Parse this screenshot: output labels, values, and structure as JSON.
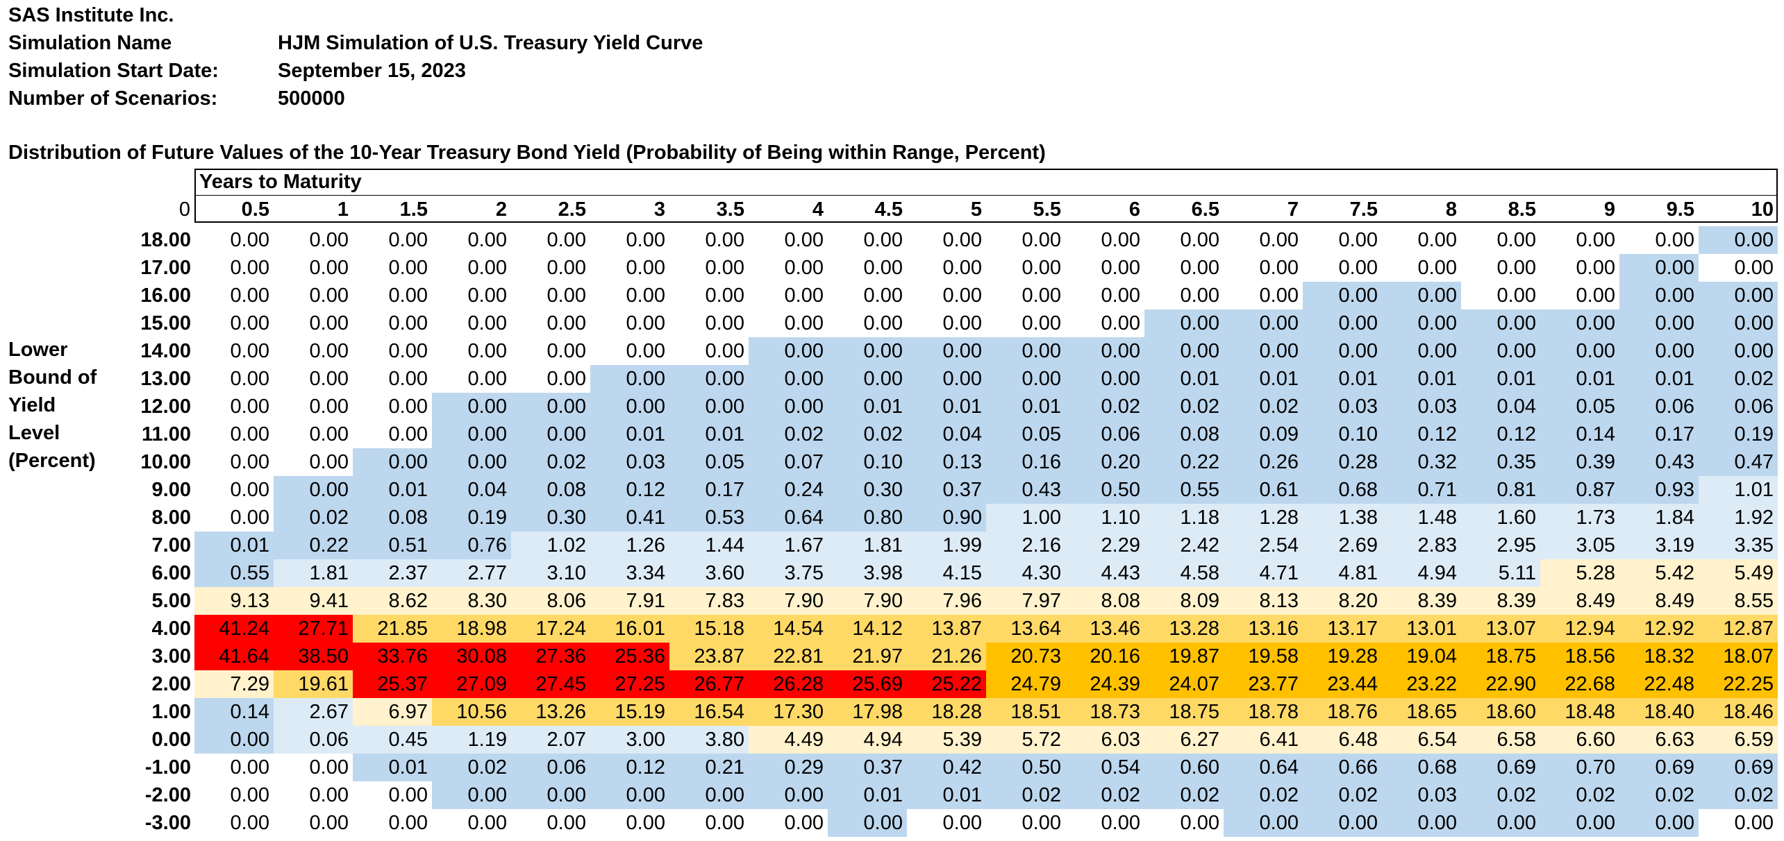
{
  "header": {
    "company": "SAS Institute Inc.",
    "fields": [
      {
        "label": "Simulation Name",
        "value": "HJM Simulation of U.S. Treasury Yield Curve"
      },
      {
        "label": "Simulation Start Date:",
        "value": "September 15, 2023"
      },
      {
        "label": "Number of Scenarios:",
        "value": "500000"
      }
    ]
  },
  "table": {
    "caption": "Distribution of Future Values of the 10-Year Treasury Bond Yield (Probability of Being within Range, Percent)",
    "column_group_title": "Years to Maturity",
    "corner_label": "0",
    "row_axis_label": [
      "Lower",
      "Bound of",
      "Yield",
      "Level",
      "(Percent)"
    ],
    "columns": [
      "0.5",
      "1",
      "1.5",
      "2",
      "2.5",
      "3",
      "3.5",
      "4",
      "4.5",
      "5",
      "5.5",
      "6",
      "6.5",
      "7",
      "7.5",
      "8",
      "8.5",
      "9",
      "9.5",
      "10"
    ],
    "rows": [
      {
        "label": "18.00",
        "values": [
          "0.00",
          "0.00",
          "0.00",
          "0.00",
          "0.00",
          "0.00",
          "0.00",
          "0.00",
          "0.00",
          "0.00",
          "0.00",
          "0.00",
          "0.00",
          "0.00",
          "0.00",
          "0.00",
          "0.00",
          "0.00",
          "0.00",
          "0.00"
        ]
      },
      {
        "label": "17.00",
        "values": [
          "0.00",
          "0.00",
          "0.00",
          "0.00",
          "0.00",
          "0.00",
          "0.00",
          "0.00",
          "0.00",
          "0.00",
          "0.00",
          "0.00",
          "0.00",
          "0.00",
          "0.00",
          "0.00",
          "0.00",
          "0.00",
          "0.00",
          "0.00"
        ]
      },
      {
        "label": "16.00",
        "values": [
          "0.00",
          "0.00",
          "0.00",
          "0.00",
          "0.00",
          "0.00",
          "0.00",
          "0.00",
          "0.00",
          "0.00",
          "0.00",
          "0.00",
          "0.00",
          "0.00",
          "0.00",
          "0.00",
          "0.00",
          "0.00",
          "0.00",
          "0.00"
        ]
      },
      {
        "label": "15.00",
        "values": [
          "0.00",
          "0.00",
          "0.00",
          "0.00",
          "0.00",
          "0.00",
          "0.00",
          "0.00",
          "0.00",
          "0.00",
          "0.00",
          "0.00",
          "0.00",
          "0.00",
          "0.00",
          "0.00",
          "0.00",
          "0.00",
          "0.00",
          "0.00"
        ]
      },
      {
        "label": "14.00",
        "values": [
          "0.00",
          "0.00",
          "0.00",
          "0.00",
          "0.00",
          "0.00",
          "0.00",
          "0.00",
          "0.00",
          "0.00",
          "0.00",
          "0.00",
          "0.00",
          "0.00",
          "0.00",
          "0.00",
          "0.00",
          "0.00",
          "0.00",
          "0.00"
        ]
      },
      {
        "label": "13.00",
        "values": [
          "0.00",
          "0.00",
          "0.00",
          "0.00",
          "0.00",
          "0.00",
          "0.00",
          "0.00",
          "0.00",
          "0.00",
          "0.00",
          "0.00",
          "0.01",
          "0.01",
          "0.01",
          "0.01",
          "0.01",
          "0.01",
          "0.01",
          "0.02"
        ]
      },
      {
        "label": "12.00",
        "values": [
          "0.00",
          "0.00",
          "0.00",
          "0.00",
          "0.00",
          "0.00",
          "0.00",
          "0.00",
          "0.01",
          "0.01",
          "0.01",
          "0.02",
          "0.02",
          "0.02",
          "0.03",
          "0.03",
          "0.04",
          "0.05",
          "0.06",
          "0.06"
        ]
      },
      {
        "label": "11.00",
        "values": [
          "0.00",
          "0.00",
          "0.00",
          "0.00",
          "0.00",
          "0.01",
          "0.01",
          "0.02",
          "0.02",
          "0.04",
          "0.05",
          "0.06",
          "0.08",
          "0.09",
          "0.10",
          "0.12",
          "0.12",
          "0.14",
          "0.17",
          "0.19"
        ]
      },
      {
        "label": "10.00",
        "values": [
          "0.00",
          "0.00",
          "0.00",
          "0.00",
          "0.02",
          "0.03",
          "0.05",
          "0.07",
          "0.10",
          "0.13",
          "0.16",
          "0.20",
          "0.22",
          "0.26",
          "0.28",
          "0.32",
          "0.35",
          "0.39",
          "0.43",
          "0.47"
        ]
      },
      {
        "label": "9.00",
        "values": [
          "0.00",
          "0.00",
          "0.01",
          "0.04",
          "0.08",
          "0.12",
          "0.17",
          "0.24",
          "0.30",
          "0.37",
          "0.43",
          "0.50",
          "0.55",
          "0.61",
          "0.68",
          "0.71",
          "0.81",
          "0.87",
          "0.93",
          "1.01"
        ]
      },
      {
        "label": "8.00",
        "values": [
          "0.00",
          "0.02",
          "0.08",
          "0.19",
          "0.30",
          "0.41",
          "0.53",
          "0.64",
          "0.80",
          "0.90",
          "1.00",
          "1.10",
          "1.18",
          "1.28",
          "1.38",
          "1.48",
          "1.60",
          "1.73",
          "1.84",
          "1.92"
        ]
      },
      {
        "label": "7.00",
        "values": [
          "0.01",
          "0.22",
          "0.51",
          "0.76",
          "1.02",
          "1.26",
          "1.44",
          "1.67",
          "1.81",
          "1.99",
          "2.16",
          "2.29",
          "2.42",
          "2.54",
          "2.69",
          "2.83",
          "2.95",
          "3.05",
          "3.19",
          "3.35"
        ]
      },
      {
        "label": "6.00",
        "values": [
          "0.55",
          "1.81",
          "2.37",
          "2.77",
          "3.10",
          "3.34",
          "3.60",
          "3.75",
          "3.98",
          "4.15",
          "4.30",
          "4.43",
          "4.58",
          "4.71",
          "4.81",
          "4.94",
          "5.11",
          "5.28",
          "5.42",
          "5.49"
        ]
      },
      {
        "label": "5.00",
        "values": [
          "9.13",
          "9.41",
          "8.62",
          "8.30",
          "8.06",
          "7.91",
          "7.83",
          "7.90",
          "7.90",
          "7.96",
          "7.97",
          "8.08",
          "8.09",
          "8.13",
          "8.20",
          "8.39",
          "8.39",
          "8.49",
          "8.49",
          "8.55"
        ]
      },
      {
        "label": "4.00",
        "values": [
          "41.24",
          "27.71",
          "21.85",
          "18.98",
          "17.24",
          "16.01",
          "15.18",
          "14.54",
          "14.12",
          "13.87",
          "13.64",
          "13.46",
          "13.28",
          "13.16",
          "13.17",
          "13.01",
          "13.07",
          "12.94",
          "12.92",
          "12.87"
        ]
      },
      {
        "label": "3.00",
        "values": [
          "41.64",
          "38.50",
          "33.76",
          "30.08",
          "27.36",
          "25.36",
          "23.87",
          "22.81",
          "21.97",
          "21.26",
          "20.73",
          "20.16",
          "19.87",
          "19.58",
          "19.28",
          "19.04",
          "18.75",
          "18.56",
          "18.32",
          "18.07"
        ]
      },
      {
        "label": "2.00",
        "values": [
          "7.29",
          "19.61",
          "25.37",
          "27.09",
          "27.45",
          "27.25",
          "26.77",
          "26.28",
          "25.69",
          "25.22",
          "24.79",
          "24.39",
          "24.07",
          "23.77",
          "23.44",
          "23.22",
          "22.90",
          "22.68",
          "22.48",
          "22.25"
        ]
      },
      {
        "label": "1.00",
        "values": [
          "0.14",
          "2.67",
          "6.97",
          "10.56",
          "13.26",
          "15.19",
          "16.54",
          "17.30",
          "17.98",
          "18.28",
          "18.51",
          "18.73",
          "18.75",
          "18.78",
          "18.76",
          "18.65",
          "18.60",
          "18.48",
          "18.40",
          "18.46"
        ]
      },
      {
        "label": "0.00",
        "values": [
          "0.00",
          "0.06",
          "0.45",
          "1.19",
          "2.07",
          "3.00",
          "3.80",
          "4.49",
          "4.94",
          "5.39",
          "5.72",
          "6.03",
          "6.27",
          "6.41",
          "6.48",
          "6.54",
          "6.58",
          "6.60",
          "6.63",
          "6.59"
        ]
      },
      {
        "label": "-1.00",
        "values": [
          "0.00",
          "0.00",
          "0.01",
          "0.02",
          "0.06",
          "0.12",
          "0.21",
          "0.29",
          "0.37",
          "0.42",
          "0.50",
          "0.54",
          "0.60",
          "0.64",
          "0.66",
          "0.68",
          "0.69",
          "0.70",
          "0.69",
          "0.69"
        ]
      },
      {
        "label": "-2.00",
        "values": [
          "0.00",
          "0.00",
          "0.00",
          "0.00",
          "0.00",
          "0.00",
          "0.00",
          "0.00",
          "0.01",
          "0.01",
          "0.02",
          "0.02",
          "0.02",
          "0.02",
          "0.02",
          "0.03",
          "0.02",
          "0.02",
          "0.02",
          "0.02"
        ]
      },
      {
        "label": "-3.00",
        "values": [
          "0.00",
          "0.00",
          "0.00",
          "0.00",
          "0.00",
          "0.00",
          "0.00",
          "0.00",
          "0.00",
          "0.00",
          "0.00",
          "0.00",
          "0.00",
          "0.00",
          "0.00",
          "0.00",
          "0.00",
          "0.00",
          "0.00",
          "0.00"
        ]
      }
    ],
    "cell_fill_levels": [
      "0000000000000000000B",
      "000000000000000000B0",
      "00000000000000BB00BB",
      "000000000000BBBBBBBB",
      "0000000BBBBBBBBBBBBB",
      "00000BBBBBBBBBBBBBBB",
      "000BBBBBBBBBBBBBBBBB",
      "000BBBBBBBBBBBBBBBBB",
      "00BBBBBBBBBBBBBBBBBB",
      "0BBBBBBBBBBBBBBBBBBL",
      "0BBBBBBBBBLLLLLLLLLL",
      "BBBBLLLLLLLLLLLLLLLL",
      "BLLLLLLLLLLLLLLLLYYY",
      "YYYYYYYYYYYYYYYYYYYY",
      "RRGGGGGGGGGGGGGGGGGG",
      "RRRRRRGGGGOOOOOOOOOO",
      "YGRRRRRRRROOOOOOOOOO",
      "BLYGGGGGGGGGGGGGGGGG",
      "BLLLLLLYYYYYYYYYYYYY",
      "00BBBBBBBBBBBBBBBBBB",
      "000BBBBBBBBBBBBBBBBB",
      "00000000B0000BBBBBB0"
    ],
    "fill_colors": {
      "0": "#ffffff",
      "B": "#bdd7ee",
      "L": "#ddebf7",
      "Y": "#fff2cc",
      "G": "#ffd966",
      "O": "#ffc000",
      "R": "#ff0000"
    }
  }
}
